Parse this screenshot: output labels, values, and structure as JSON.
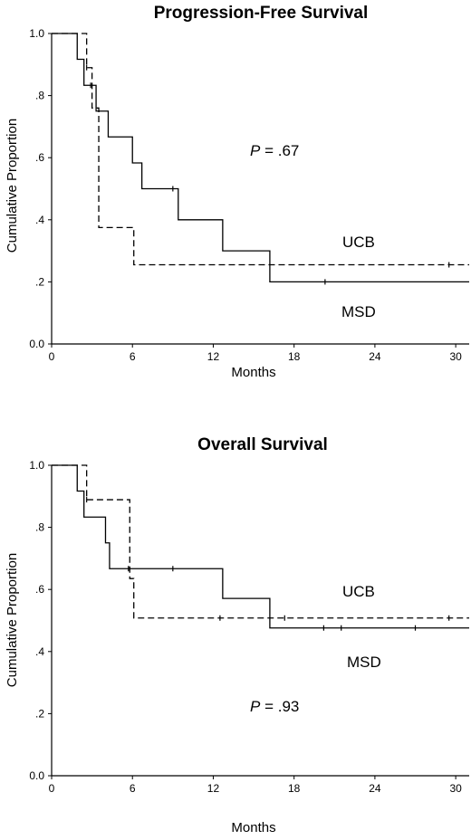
{
  "chart_data": [
    {
      "type": "line",
      "subtype": "kaplan-meier",
      "title": "Progression-Free Survival",
      "xlabel": "Months",
      "ylabel": "Cumulative Proportion",
      "xlim": [
        0,
        31
      ],
      "ylim": [
        0,
        1
      ],
      "x_ticks": [
        "0",
        "6",
        "12",
        "18",
        "24",
        "30"
      ],
      "y_ticks": [
        "0.0",
        ".2",
        ".4",
        ".6",
        ".8",
        "1.0"
      ],
      "grid": false,
      "p_value_label": "P",
      "p_value_text": " = .67",
      "series": [
        {
          "name": "UCB",
          "line": "dashed",
          "steps": [
            [
              0,
              1.0
            ],
            [
              2.6,
              0.89
            ],
            [
              3.0,
              0.76
            ],
            [
              3.5,
              0.375
            ],
            [
              6.1,
              0.255
            ],
            [
              31,
              0.255
            ]
          ],
          "censor_x": [
            2.6,
            29.5
          ]
        },
        {
          "name": "MSD",
          "line": "solid",
          "steps": [
            [
              0,
              1.0
            ],
            [
              1.9,
              0.917
            ],
            [
              2.4,
              0.833
            ],
            [
              3.3,
              0.75
            ],
            [
              4.2,
              0.667
            ],
            [
              6.0,
              0.583
            ],
            [
              6.7,
              0.5
            ],
            [
              9.4,
              0.4
            ],
            [
              12.7,
              0.3
            ],
            [
              16.2,
              0.2
            ],
            [
              31,
              0.2
            ]
          ],
          "censor_x": [
            2.9,
            9.0,
            20.3
          ]
        }
      ]
    },
    {
      "type": "line",
      "subtype": "kaplan-meier",
      "title": "Overall Survival",
      "xlabel": "Months",
      "ylabel": "Cumulative Proportion",
      "xlim": [
        0,
        31
      ],
      "ylim": [
        0,
        1
      ],
      "x_ticks": [
        "0",
        "6",
        "12",
        "18",
        "24",
        "30"
      ],
      "y_ticks": [
        "0.0",
        ".2",
        ".4",
        ".6",
        ".8",
        "1.0"
      ],
      "grid": false,
      "p_value_label": "P",
      "p_value_text": " = .93",
      "series": [
        {
          "name": "UCB",
          "line": "dashed",
          "steps": [
            [
              0,
              1.0
            ],
            [
              2.6,
              0.889
            ],
            [
              5.8,
              0.635
            ],
            [
              6.1,
              0.508
            ],
            [
              31,
              0.508
            ]
          ],
          "censor_x": [
            2.6,
            12.5,
            17.3,
            29.5
          ]
        },
        {
          "name": "MSD",
          "line": "solid",
          "steps": [
            [
              0,
              1.0
            ],
            [
              1.9,
              0.917
            ],
            [
              2.4,
              0.833
            ],
            [
              4.0,
              0.75
            ],
            [
              4.3,
              0.667
            ],
            [
              12.7,
              0.571
            ],
            [
              16.2,
              0.476
            ],
            [
              31,
              0.476
            ]
          ],
          "censor_x": [
            5.7,
            9.0,
            20.2,
            21.5,
            27.0
          ]
        }
      ]
    }
  ]
}
